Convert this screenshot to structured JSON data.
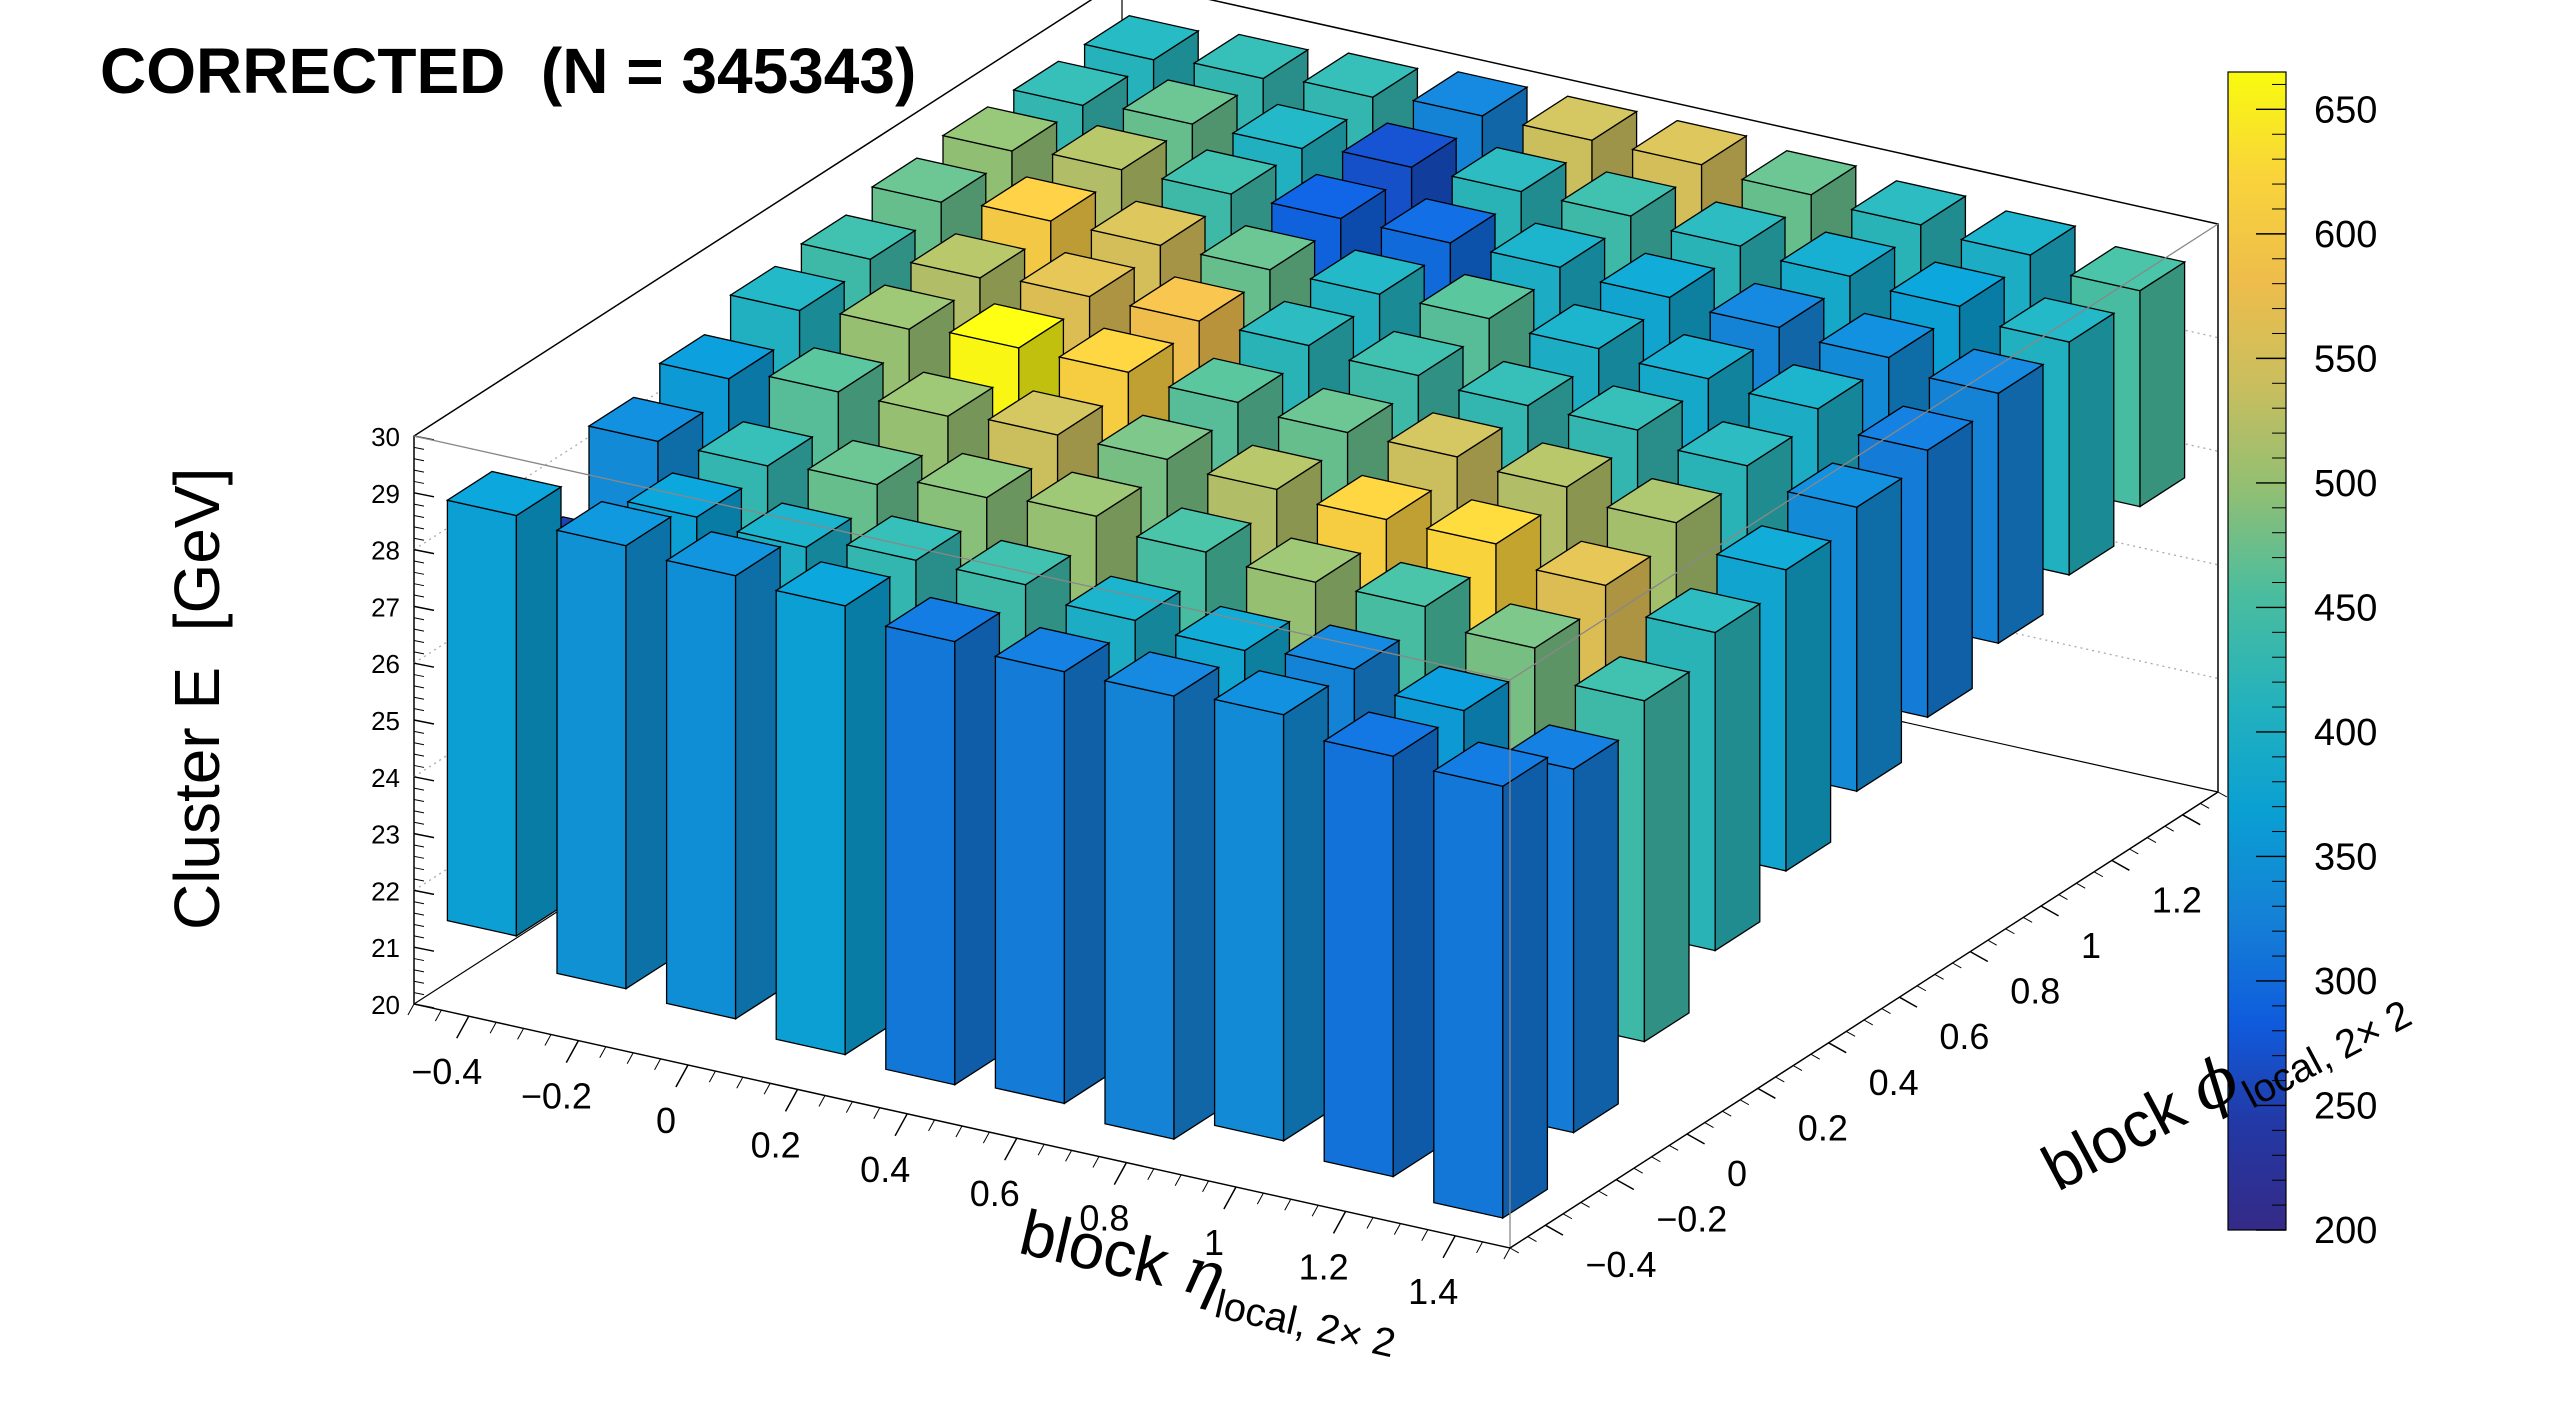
{
  "title": "CORRECTED  (N = 345343)",
  "z_axis": {
    "label": "Cluster E  [GeV]",
    "ticks": [
      "20",
      "21",
      "22",
      "23",
      "24",
      "25",
      "26",
      "27",
      "28",
      "29",
      "30"
    ]
  },
  "x_axis": {
    "label_main": "block ",
    "label_greek": "η",
    "label_sub": "local, 2× 2",
    "ticks": [
      "−0.4",
      "−0.2",
      "0",
      "0.2",
      "0.4",
      "0.6",
      "0.8",
      "1",
      "1.2",
      "1.4"
    ]
  },
  "y_axis": {
    "label_main": "block ",
    "label_greek": "ϕ",
    "label_sub": "local, 2× 2",
    "ticks": [
      "−0.4",
      "−0.2",
      "0",
      "0.2",
      "0.4",
      "0.6",
      "0.8",
      "1",
      "1.2"
    ]
  },
  "colorbar": {
    "ticks": [
      "200",
      "250",
      "300",
      "350",
      "400",
      "450",
      "500",
      "550",
      "600",
      "650"
    ]
  },
  "colors": {
    "palette": [
      "#352a87",
      "#2338a4",
      "#0f5cdd",
      "#1581d6",
      "#0a9fd3",
      "#22b1be",
      "#4bbd9e",
      "#92bf73",
      "#c9be5e",
      "#eebd4b",
      "#f9d43b",
      "#f9fb0e"
    ],
    "frame": "#000000",
    "grid": "#aaaaaa"
  },
  "chart_data": {
    "type": "lego",
    "title": "CORRECTED  (N = 345343)",
    "xlabel": "block η local, 2× 2",
    "ylabel": "block ϕ local, 2× 2",
    "zlabel": "Cluster E  [GeV]",
    "zlim": [
      20,
      30
    ],
    "color_range": [
      200,
      665
    ],
    "x_bin_centers": [
      -0.4,
      -0.2,
      0.0,
      0.2,
      0.4,
      0.6,
      0.8,
      1.0,
      1.2,
      1.4
    ],
    "y_bin_centers": [
      -0.4,
      -0.2,
      0.0,
      0.2,
      0.4,
      0.6,
      0.8,
      1.0,
      1.2,
      1.4
    ],
    "bins": [
      {
        "x": -0.4,
        "y": -0.4,
        "z": [
          21.4,
          28.8
        ],
        "c": 370
      },
      {
        "x": -0.4,
        "y": -0.2,
        "z": [
          22.5,
          27.2
        ],
        "c": 250
      },
      {
        "x": -0.4,
        "y": 0.0,
        "z": [
          23.0,
          28.5
        ],
        "c": 340
      },
      {
        "x": -0.4,
        "y": 0.2,
        "z": [
          23.5,
          28.8
        ],
        "c": 360
      },
      {
        "x": -0.4,
        "y": 0.4,
        "z": [
          24.0,
          29.2
        ],
        "c": 410
      },
      {
        "x": -0.4,
        "y": 0.6,
        "z": [
          24.5,
          29.3
        ],
        "c": 440
      },
      {
        "x": -0.4,
        "y": 0.8,
        "z": [
          25.0,
          29.5
        ],
        "c": 470
      },
      {
        "x": -0.4,
        "y": 1.0,
        "z": [
          25.2,
          29.6
        ],
        "c": 495
      },
      {
        "x": -0.4,
        "y": 1.2,
        "z": [
          25.5,
          29.6
        ],
        "c": 430
      },
      {
        "x": -0.4,
        "y": 1.4,
        "z": [
          25.8,
          29.6
        ],
        "c": 415
      },
      {
        "x": -0.2,
        "y": -0.4,
        "z": [
          20.9,
          28.7
        ],
        "c": 350
      },
      {
        "x": -0.2,
        "y": -0.2,
        "z": [
          21.8,
          28.4
        ],
        "c": 370
      },
      {
        "x": -0.2,
        "y": 0.0,
        "z": [
          22.5,
          28.5
        ],
        "c": 430
      },
      {
        "x": -0.2,
        "y": 0.2,
        "z": [
          23.0,
          29.0
        ],
        "c": 460
      },
      {
        "x": -0.2,
        "y": 0.4,
        "z": [
          23.8,
          29.3
        ],
        "c": 500
      },
      {
        "x": -0.2,
        "y": 0.6,
        "z": [
          24.3,
          29.4
        ],
        "c": 520
      },
      {
        "x": -0.2,
        "y": 0.8,
        "z": [
          24.8,
          29.6
        ],
        "c": 600
      },
      {
        "x": -0.2,
        "y": 1.0,
        "z": [
          25.0,
          29.7
        ],
        "c": 520
      },
      {
        "x": -0.2,
        "y": 1.2,
        "z": [
          25.3,
          29.7
        ],
        "c": 470
      },
      {
        "x": -0.2,
        "y": 1.4,
        "z": [
          25.6,
          29.7
        ],
        "c": 430
      },
      {
        "x": 0.0,
        "y": -0.4,
        "z": [
          20.8,
          28.6
        ],
        "c": 345
      },
      {
        "x": 0.0,
        "y": -0.2,
        "z": [
          21.5,
          28.3
        ],
        "c": 400
      },
      {
        "x": 0.0,
        "y": 0.0,
        "z": [
          22.3,
          28.6
        ],
        "c": 470
      },
      {
        "x": 0.0,
        "y": 0.2,
        "z": [
          23.0,
          29.0
        ],
        "c": 500
      },
      {
        "x": 0.0,
        "y": 0.4,
        "z": [
          23.6,
          29.4
        ],
        "c": 660
      },
      {
        "x": 0.0,
        "y": 0.6,
        "z": [
          24.2,
          29.5
        ],
        "c": 560
      },
      {
        "x": 0.0,
        "y": 0.8,
        "z": [
          24.7,
          29.6
        ],
        "c": 550
      },
      {
        "x": 0.0,
        "y": 1.0,
        "z": [
          25.0,
          29.7
        ],
        "c": 440
      },
      {
        "x": 0.0,
        "y": 1.2,
        "z": [
          25.3,
          29.7
        ],
        "c": 410
      },
      {
        "x": 0.0,
        "y": 1.4,
        "z": [
          25.6,
          29.8
        ],
        "c": 430
      },
      {
        "x": 0.2,
        "y": -0.4,
        "z": [
          20.6,
          28.5
        ],
        "c": 370
      },
      {
        "x": 0.2,
        "y": -0.2,
        "z": [
          21.3,
          28.5
        ],
        "c": 430
      },
      {
        "x": 0.2,
        "y": 0.0,
        "z": [
          22.0,
          28.8
        ],
        "c": 490
      },
      {
        "x": 0.2,
        "y": 0.2,
        "z": [
          22.8,
          29.1
        ],
        "c": 540
      },
      {
        "x": 0.2,
        "y": 0.4,
        "z": [
          23.4,
          29.4
        ],
        "c": 610
      },
      {
        "x": 0.2,
        "y": 0.6,
        "z": [
          24.0,
          29.5
        ],
        "c": 580
      },
      {
        "x": 0.2,
        "y": 0.8,
        "z": [
          24.6,
          29.6
        ],
        "c": 470
      },
      {
        "x": 0.2,
        "y": 1.0,
        "z": [
          25.0,
          29.7
        ],
        "c": 290
      },
      {
        "x": 0.2,
        "y": 1.2,
        "z": [
          25.3,
          29.8
        ],
        "c": 270
      },
      {
        "x": 0.2,
        "y": 1.4,
        "z": [
          25.6,
          29.9
        ],
        "c": 330
      },
      {
        "x": 0.4,
        "y": -0.4,
        "z": [
          20.5,
          28.3
        ],
        "c": 315
      },
      {
        "x": 0.4,
        "y": -0.2,
        "z": [
          21.2,
          28.5
        ],
        "c": 440
      },
      {
        "x": 0.4,
        "y": 0.0,
        "z": [
          22.0,
          28.9
        ],
        "c": 500
      },
      {
        "x": 0.4,
        "y": 0.2,
        "z": [
          22.7,
          29.1
        ],
        "c": 480
      },
      {
        "x": 0.4,
        "y": 0.4,
        "z": [
          23.3,
          29.3
        ],
        "c": 460
      },
      {
        "x": 0.4,
        "y": 0.6,
        "z": [
          24.0,
          29.5
        ],
        "c": 420
      },
      {
        "x": 0.4,
        "y": 0.8,
        "z": [
          24.5,
          29.6
        ],
        "c": 410
      },
      {
        "x": 0.4,
        "y": 1.0,
        "z": [
          24.9,
          29.7
        ],
        "c": 300
      },
      {
        "x": 0.4,
        "y": 1.2,
        "z": [
          25.3,
          29.8
        ],
        "c": 420
      },
      {
        "x": 0.4,
        "y": 1.4,
        "z": [
          25.6,
          29.9
        ],
        "c": 540
      },
      {
        "x": 0.6,
        "y": -0.4,
        "z": [
          20.6,
          28.2
        ],
        "c": 320
      },
      {
        "x": 0.6,
        "y": -0.2,
        "z": [
          21.3,
          28.3
        ],
        "c": 400
      },
      {
        "x": 0.6,
        "y": 0.0,
        "z": [
          22.1,
          28.7
        ],
        "c": 450
      },
      {
        "x": 0.6,
        "y": 0.2,
        "z": [
          22.8,
          29.0
        ],
        "c": 520
      },
      {
        "x": 0.6,
        "y": 0.4,
        "z": [
          23.4,
          29.2
        ],
        "c": 470
      },
      {
        "x": 0.6,
        "y": 0.6,
        "z": [
          24.0,
          29.4
        ],
        "c": 440
      },
      {
        "x": 0.6,
        "y": 0.8,
        "z": [
          24.5,
          29.6
        ],
        "c": 460
      },
      {
        "x": 0.6,
        "y": 1.0,
        "z": [
          24.9,
          29.7
        ],
        "c": 400
      },
      {
        "x": 0.6,
        "y": 1.2,
        "z": [
          25.3,
          29.8
        ],
        "c": 440
      },
      {
        "x": 0.6,
        "y": 1.4,
        "z": [
          25.6,
          29.9
        ],
        "c": 550
      },
      {
        "x": 0.8,
        "y": -0.4,
        "z": [
          20.4,
          28.2
        ],
        "c": 330
      },
      {
        "x": 0.8,
        "y": -0.2,
        "z": [
          21.2,
          28.2
        ],
        "c": 380
      },
      {
        "x": 0.8,
        "y": 0.0,
        "z": [
          22.0,
          28.6
        ],
        "c": 500
      },
      {
        "x": 0.8,
        "y": 0.2,
        "z": [
          22.7,
          28.9
        ],
        "c": 610
      },
      {
        "x": 0.8,
        "y": 0.4,
        "z": [
          23.3,
          29.2
        ],
        "c": 540
      },
      {
        "x": 0.8,
        "y": 0.6,
        "z": [
          23.9,
          29.3
        ],
        "c": 430
      },
      {
        "x": 0.8,
        "y": 0.8,
        "z": [
          24.5,
          29.5
        ],
        "c": 400
      },
      {
        "x": 0.8,
        "y": 1.0,
        "z": [
          24.9,
          29.6
        ],
        "c": 380
      },
      {
        "x": 0.8,
        "y": 1.2,
        "z": [
          25.3,
          29.7
        ],
        "c": 420
      },
      {
        "x": 0.8,
        "y": 1.4,
        "z": [
          25.6,
          29.8
        ],
        "c": 470
      },
      {
        "x": 1.0,
        "y": -0.4,
        "z": [
          20.8,
          28.3
        ],
        "c": 340
      },
      {
        "x": 1.0,
        "y": -0.2,
        "z": [
          21.5,
          28.3
        ],
        "c": 330
      },
      {
        "x": 1.0,
        "y": 0.0,
        "z": [
          22.2,
          28.6
        ],
        "c": 450
      },
      {
        "x": 1.0,
        "y": 0.2,
        "z": [
          22.8,
          28.9
        ],
        "c": 620
      },
      {
        "x": 1.0,
        "y": 0.4,
        "z": [
          23.4,
          29.1
        ],
        "c": 520
      },
      {
        "x": 1.0,
        "y": 0.6,
        "z": [
          24.0,
          29.3
        ],
        "c": 430
      },
      {
        "x": 1.0,
        "y": 0.8,
        "z": [
          24.5,
          29.4
        ],
        "c": 390
      },
      {
        "x": 1.0,
        "y": 1.0,
        "z": [
          24.9,
          29.5
        ],
        "c": 330
      },
      {
        "x": 1.0,
        "y": 1.2,
        "z": [
          25.3,
          29.6
        ],
        "c": 390
      },
      {
        "x": 1.0,
        "y": 1.4,
        "z": [
          25.6,
          29.7
        ],
        "c": 420
      },
      {
        "x": 1.2,
        "y": -0.4,
        "z": [
          20.6,
          28.0
        ],
        "c": 310
      },
      {
        "x": 1.2,
        "y": -0.2,
        "z": [
          21.4,
          28.0
        ],
        "c": 360
      },
      {
        "x": 1.2,
        "y": 0.0,
        "z": [
          22.1,
          28.3
        ],
        "c": 480
      },
      {
        "x": 1.2,
        "y": 0.2,
        "z": [
          22.8,
          28.6
        ],
        "c": 560
      },
      {
        "x": 1.2,
        "y": 0.4,
        "z": [
          23.4,
          28.9
        ],
        "c": 510
      },
      {
        "x": 1.2,
        "y": 0.6,
        "z": [
          24.0,
          29.1
        ],
        "c": 420
      },
      {
        "x": 1.2,
        "y": 0.8,
        "z": [
          24.5,
          29.3
        ],
        "c": 400
      },
      {
        "x": 1.2,
        "y": 1.0,
        "z": [
          24.9,
          29.4
        ],
        "c": 340
      },
      {
        "x": 1.2,
        "y": 1.2,
        "z": [
          25.3,
          29.5
        ],
        "c": 370
      },
      {
        "x": 1.2,
        "y": 1.4,
        "z": [
          25.6,
          29.6
        ],
        "c": 400
      },
      {
        "x": 1.4,
        "y": -0.4,
        "z": [
          20.3,
          27.9
        ],
        "c": 315
      },
      {
        "x": 1.4,
        "y": -0.2,
        "z": [
          21.0,
          27.4
        ],
        "c": 320
      },
      {
        "x": 1.4,
        "y": 0.0,
        "z": [
          21.8,
          27.8
        ],
        "c": 440
      },
      {
        "x": 1.4,
        "y": 0.2,
        "z": [
          22.6,
          28.2
        ],
        "c": 420
      },
      {
        "x": 1.4,
        "y": 0.4,
        "z": [
          23.2,
          28.5
        ],
        "c": 380
      },
      {
        "x": 1.4,
        "y": 0.6,
        "z": [
          23.8,
          28.8
        ],
        "c": 340
      },
      {
        "x": 1.4,
        "y": 0.8,
        "z": [
          24.3,
          29.0
        ],
        "c": 320
      },
      {
        "x": 1.4,
        "y": 1.0,
        "z": [
          24.8,
          29.2
        ],
        "c": 330
      },
      {
        "x": 1.4,
        "y": 1.2,
        "z": [
          25.2,
          29.3
        ],
        "c": 410
      },
      {
        "x": 1.4,
        "y": 1.4,
        "z": [
          25.6,
          29.4
        ],
        "c": 450
      }
    ]
  }
}
